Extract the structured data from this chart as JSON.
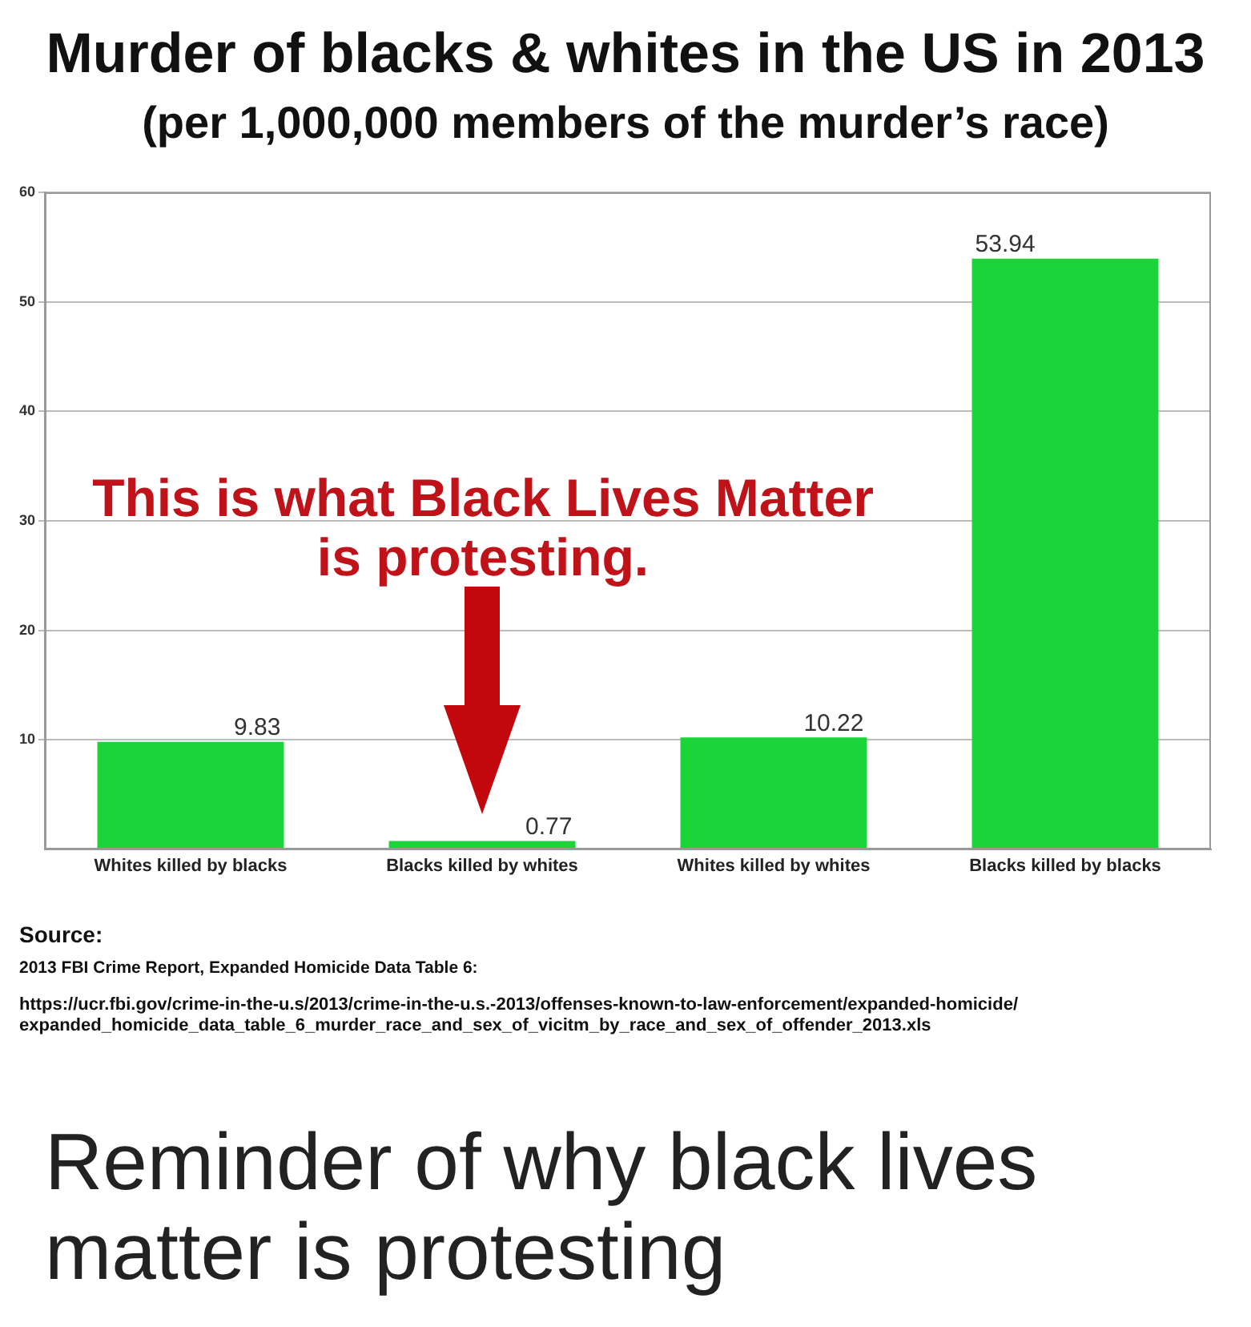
{
  "chart_data": {
    "type": "bar",
    "title": "Murder of blacks & whites in the US in 2013",
    "subtitle": "(per 1,000,000 members of the murder’s race)",
    "categories": [
      "Whites killed by blacks",
      "Blacks killed by whites",
      "Whites killed by whites",
      "Blacks killed by blacks"
    ],
    "values": [
      9.83,
      0.77,
      10.22,
      53.94
    ],
    "color": "#1ad43a",
    "ylim": [
      0,
      60
    ],
    "yticks": [
      10,
      20,
      30,
      40,
      50,
      60
    ],
    "grid": "y",
    "data_labels": true,
    "annotations": [
      "This is what Black Lives Matter is protesting.",
      "Source:",
      "2013 FBI Crime Report, Expanded Homicide Data Table 6:",
      "https://ucr.fbi.gov/crime-in-the-u.s/2013/crime-in-the-u.s.-2013/offenses-known-to-law-enforcement/expanded-homicide/expanded_homicide_data_table_6_murder_race_and_sex_of_vicitm_by_race_and_sex_of_offender_2013.xls",
      "Reminder of why black lives matter is protesting"
    ]
  }
}
